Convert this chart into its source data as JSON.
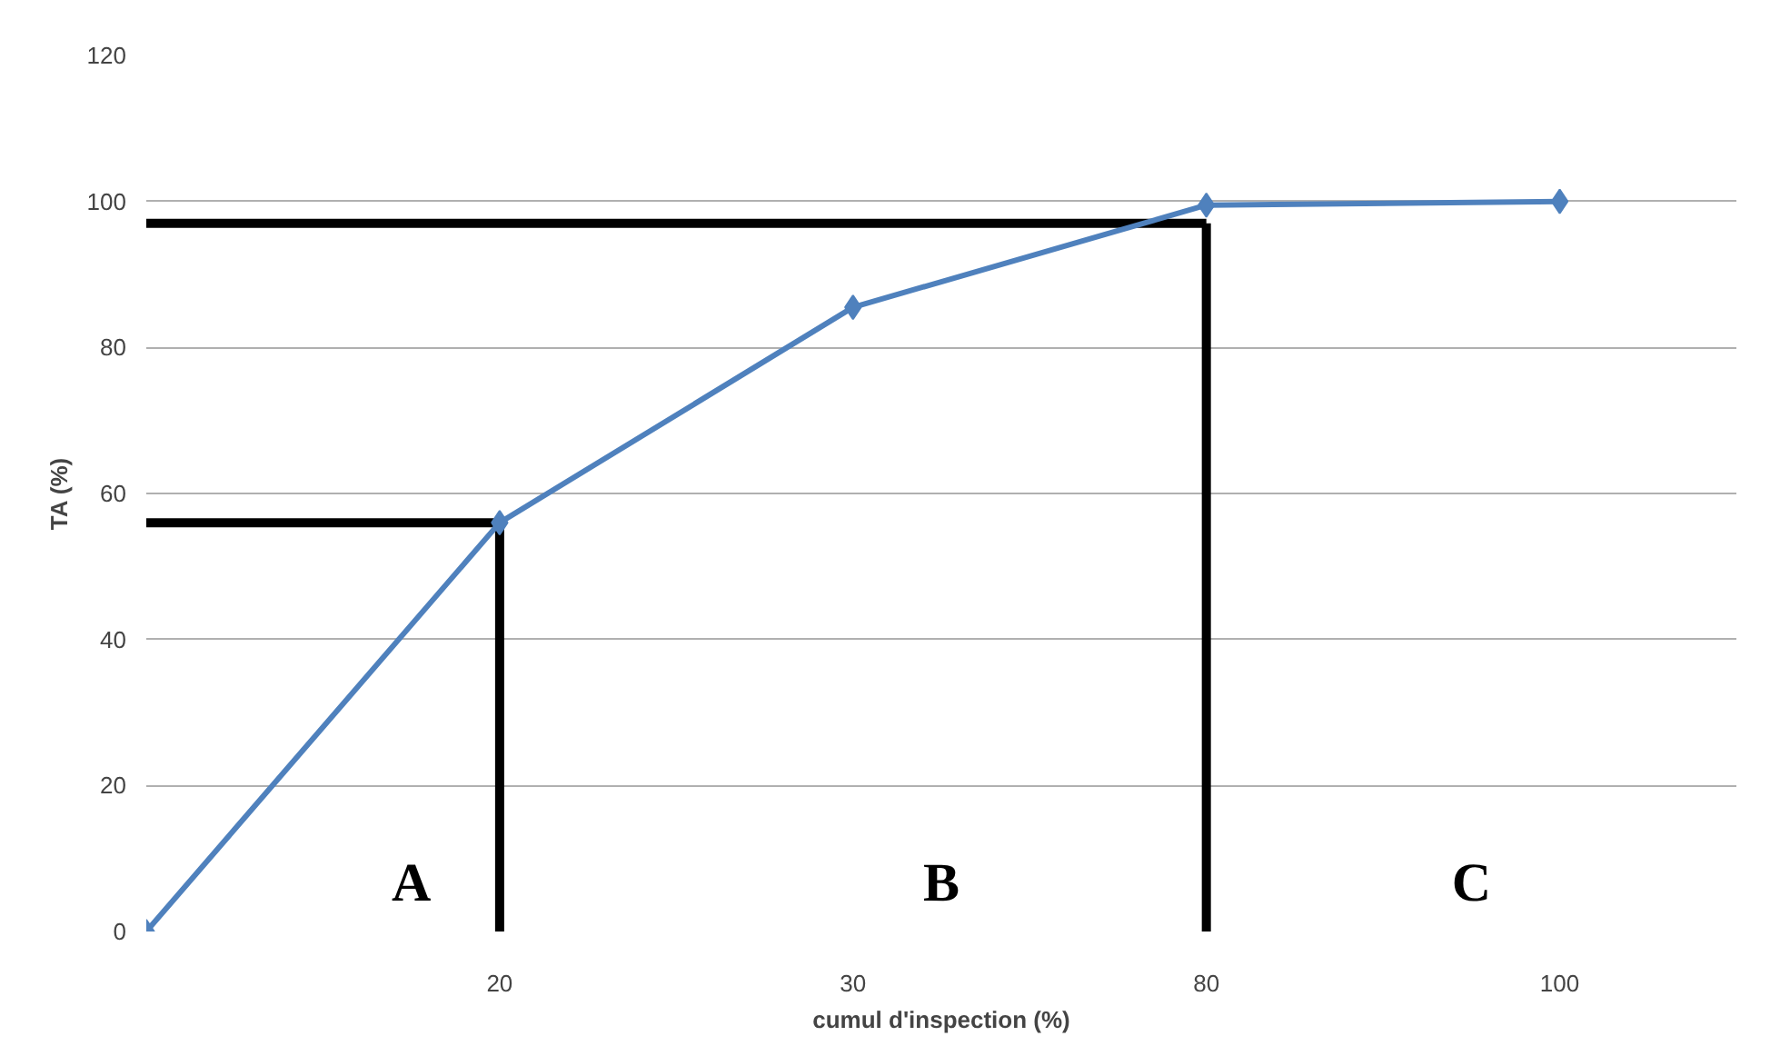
{
  "chart_data": {
    "type": "line",
    "xlabel": "cumul d'inspection (%)",
    "ylabel": "TA (%)",
    "categories": [
      null,
      "20",
      "30",
      "80",
      "100"
    ],
    "ylim": [
      0,
      120
    ],
    "yticks": [
      0,
      20,
      40,
      60,
      80,
      100,
      120
    ],
    "grid": "y",
    "series": [
      {
        "color": "#4f81bd",
        "values": [
          0,
          56,
          85.5,
          99.5,
          100
        ],
        "marker": "diamond",
        "line_style": "solid"
      },
      {
        "color": "#000000",
        "values": [
          56,
          56,
          null,
          null,
          null
        ],
        "marker": "none",
        "line_style": "solid"
      },
      {
        "color": "#000000",
        "x": [
          "20",
          "20"
        ],
        "values": [
          56,
          0
        ],
        "marker": "none",
        "line_style": "solid"
      },
      {
        "color": "#000000",
        "values": [
          97,
          97,
          97,
          97,
          null
        ],
        "marker": "none",
        "line_style": "solid"
      },
      {
        "color": "#000000",
        "x": [
          "80",
          "80"
        ],
        "values": [
          97,
          0
        ],
        "marker": "none",
        "line_style": "solid"
      }
    ],
    "annotations": [
      "A",
      "B",
      "C"
    ]
  }
}
